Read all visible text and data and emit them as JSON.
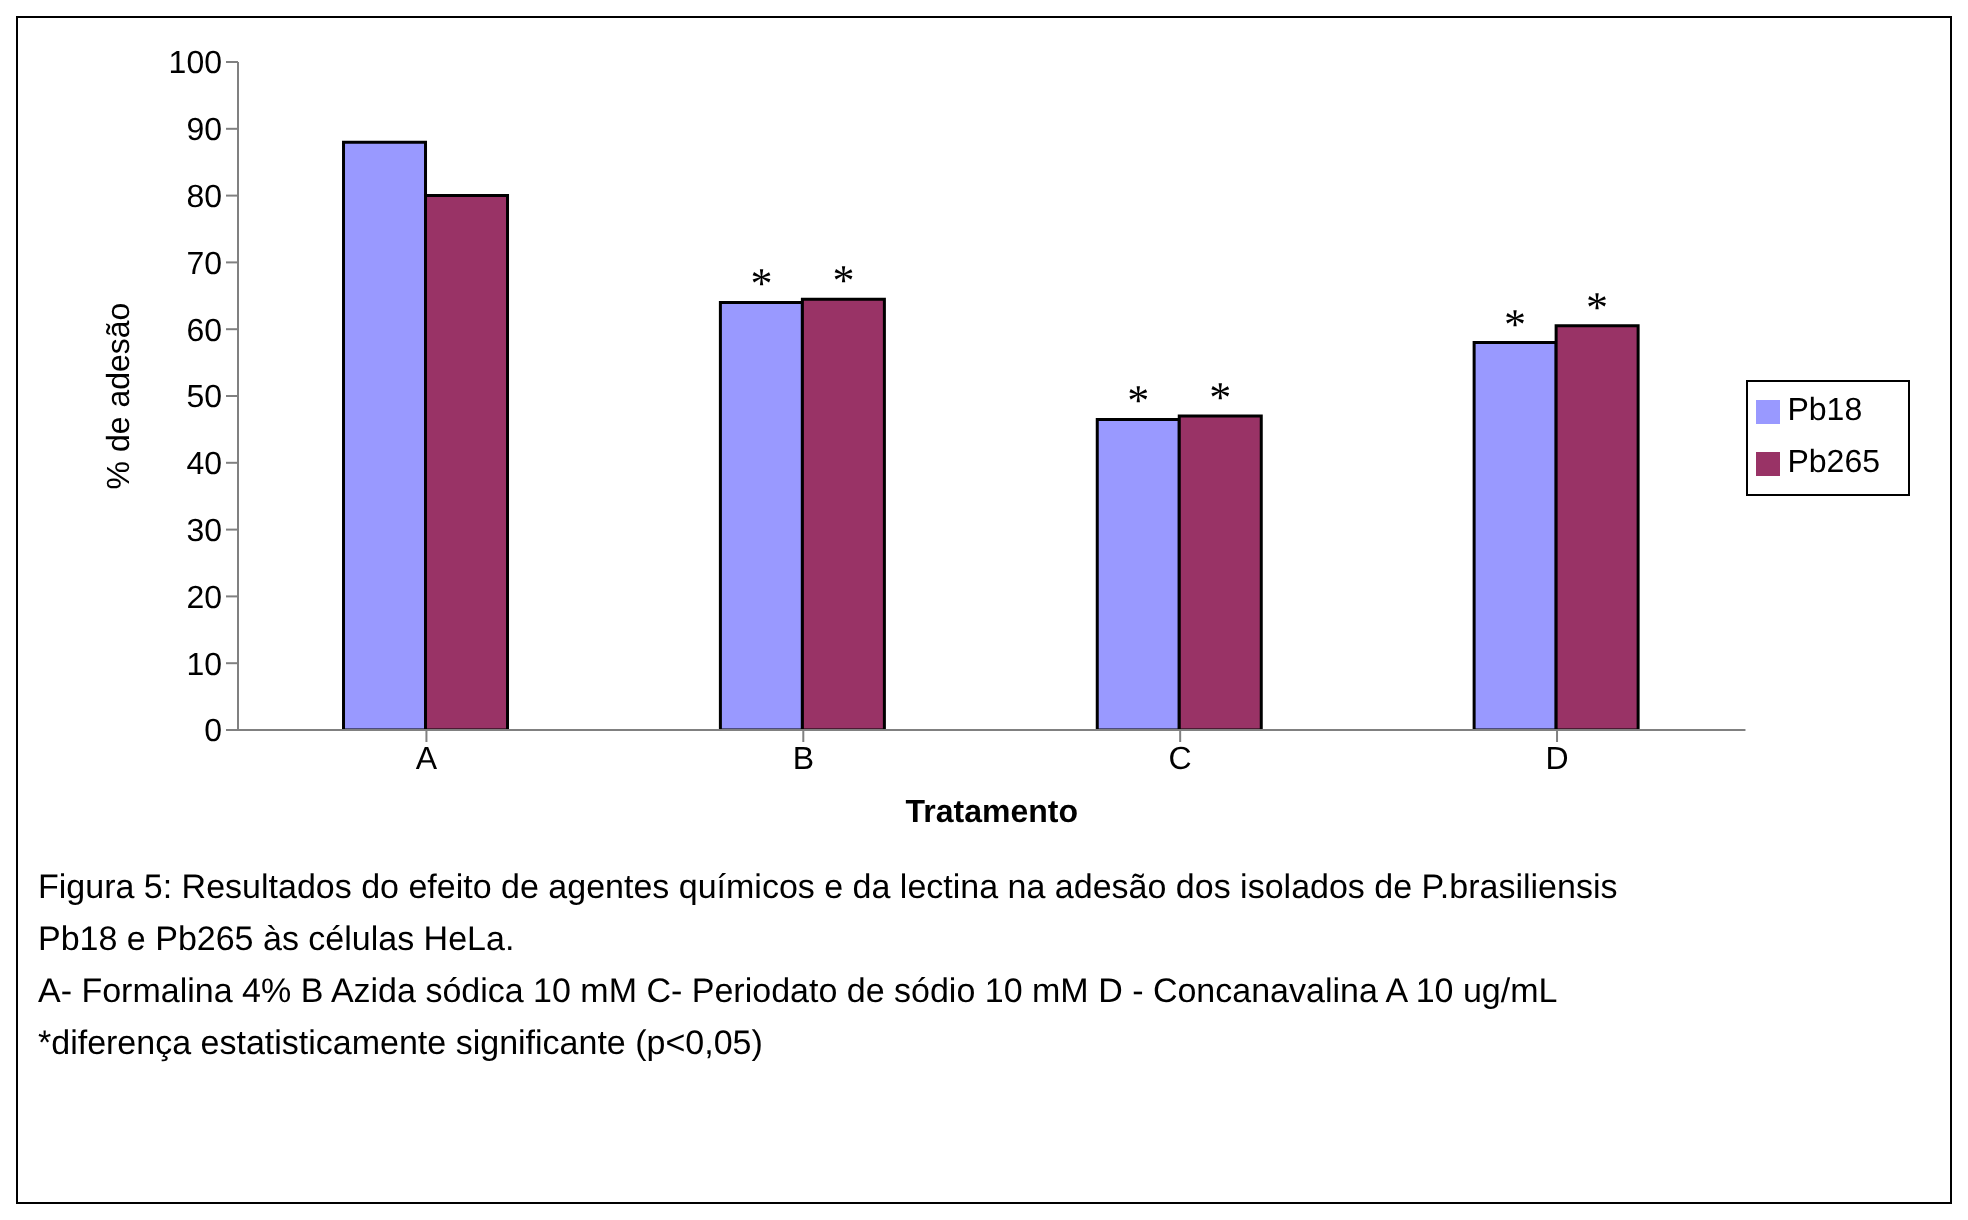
{
  "chart_data": {
    "type": "bar",
    "xlabel": "Tratamento",
    "ylabel": "% de adesão",
    "categories": [
      "A",
      "B",
      "C",
      "D"
    ],
    "series": [
      {
        "name": "Pb18",
        "color": "#9999ff",
        "values": [
          88,
          64,
          46.5,
          58
        ],
        "value_labels": [
          null,
          "*",
          "*",
          "*"
        ]
      },
      {
        "name": "Pb265",
        "color": "#993366",
        "values": [
          80,
          64.5,
          47,
          60.5
        ],
        "value_labels": [
          null,
          "*",
          "*",
          "*"
        ]
      }
    ],
    "ylim": [
      0,
      100
    ],
    "yticks": [
      0,
      10,
      20,
      30,
      40,
      50,
      60,
      70,
      80,
      90,
      100
    ],
    "legend": "right",
    "annotations": [
      "Figura 5: Resultados do efeito de agentes químicos e da lectina na adesão dos isolados de P.brasiliensis Pb18 e Pb265 às células HeLa.",
      "A- Formalina 4%   B Azida sódica 10 mM   C- Periodato de sódio 10 mM  D - Concanavalina A 10 ug/mL",
      "*diferença estatisticamente significante (p<0,05)"
    ]
  }
}
